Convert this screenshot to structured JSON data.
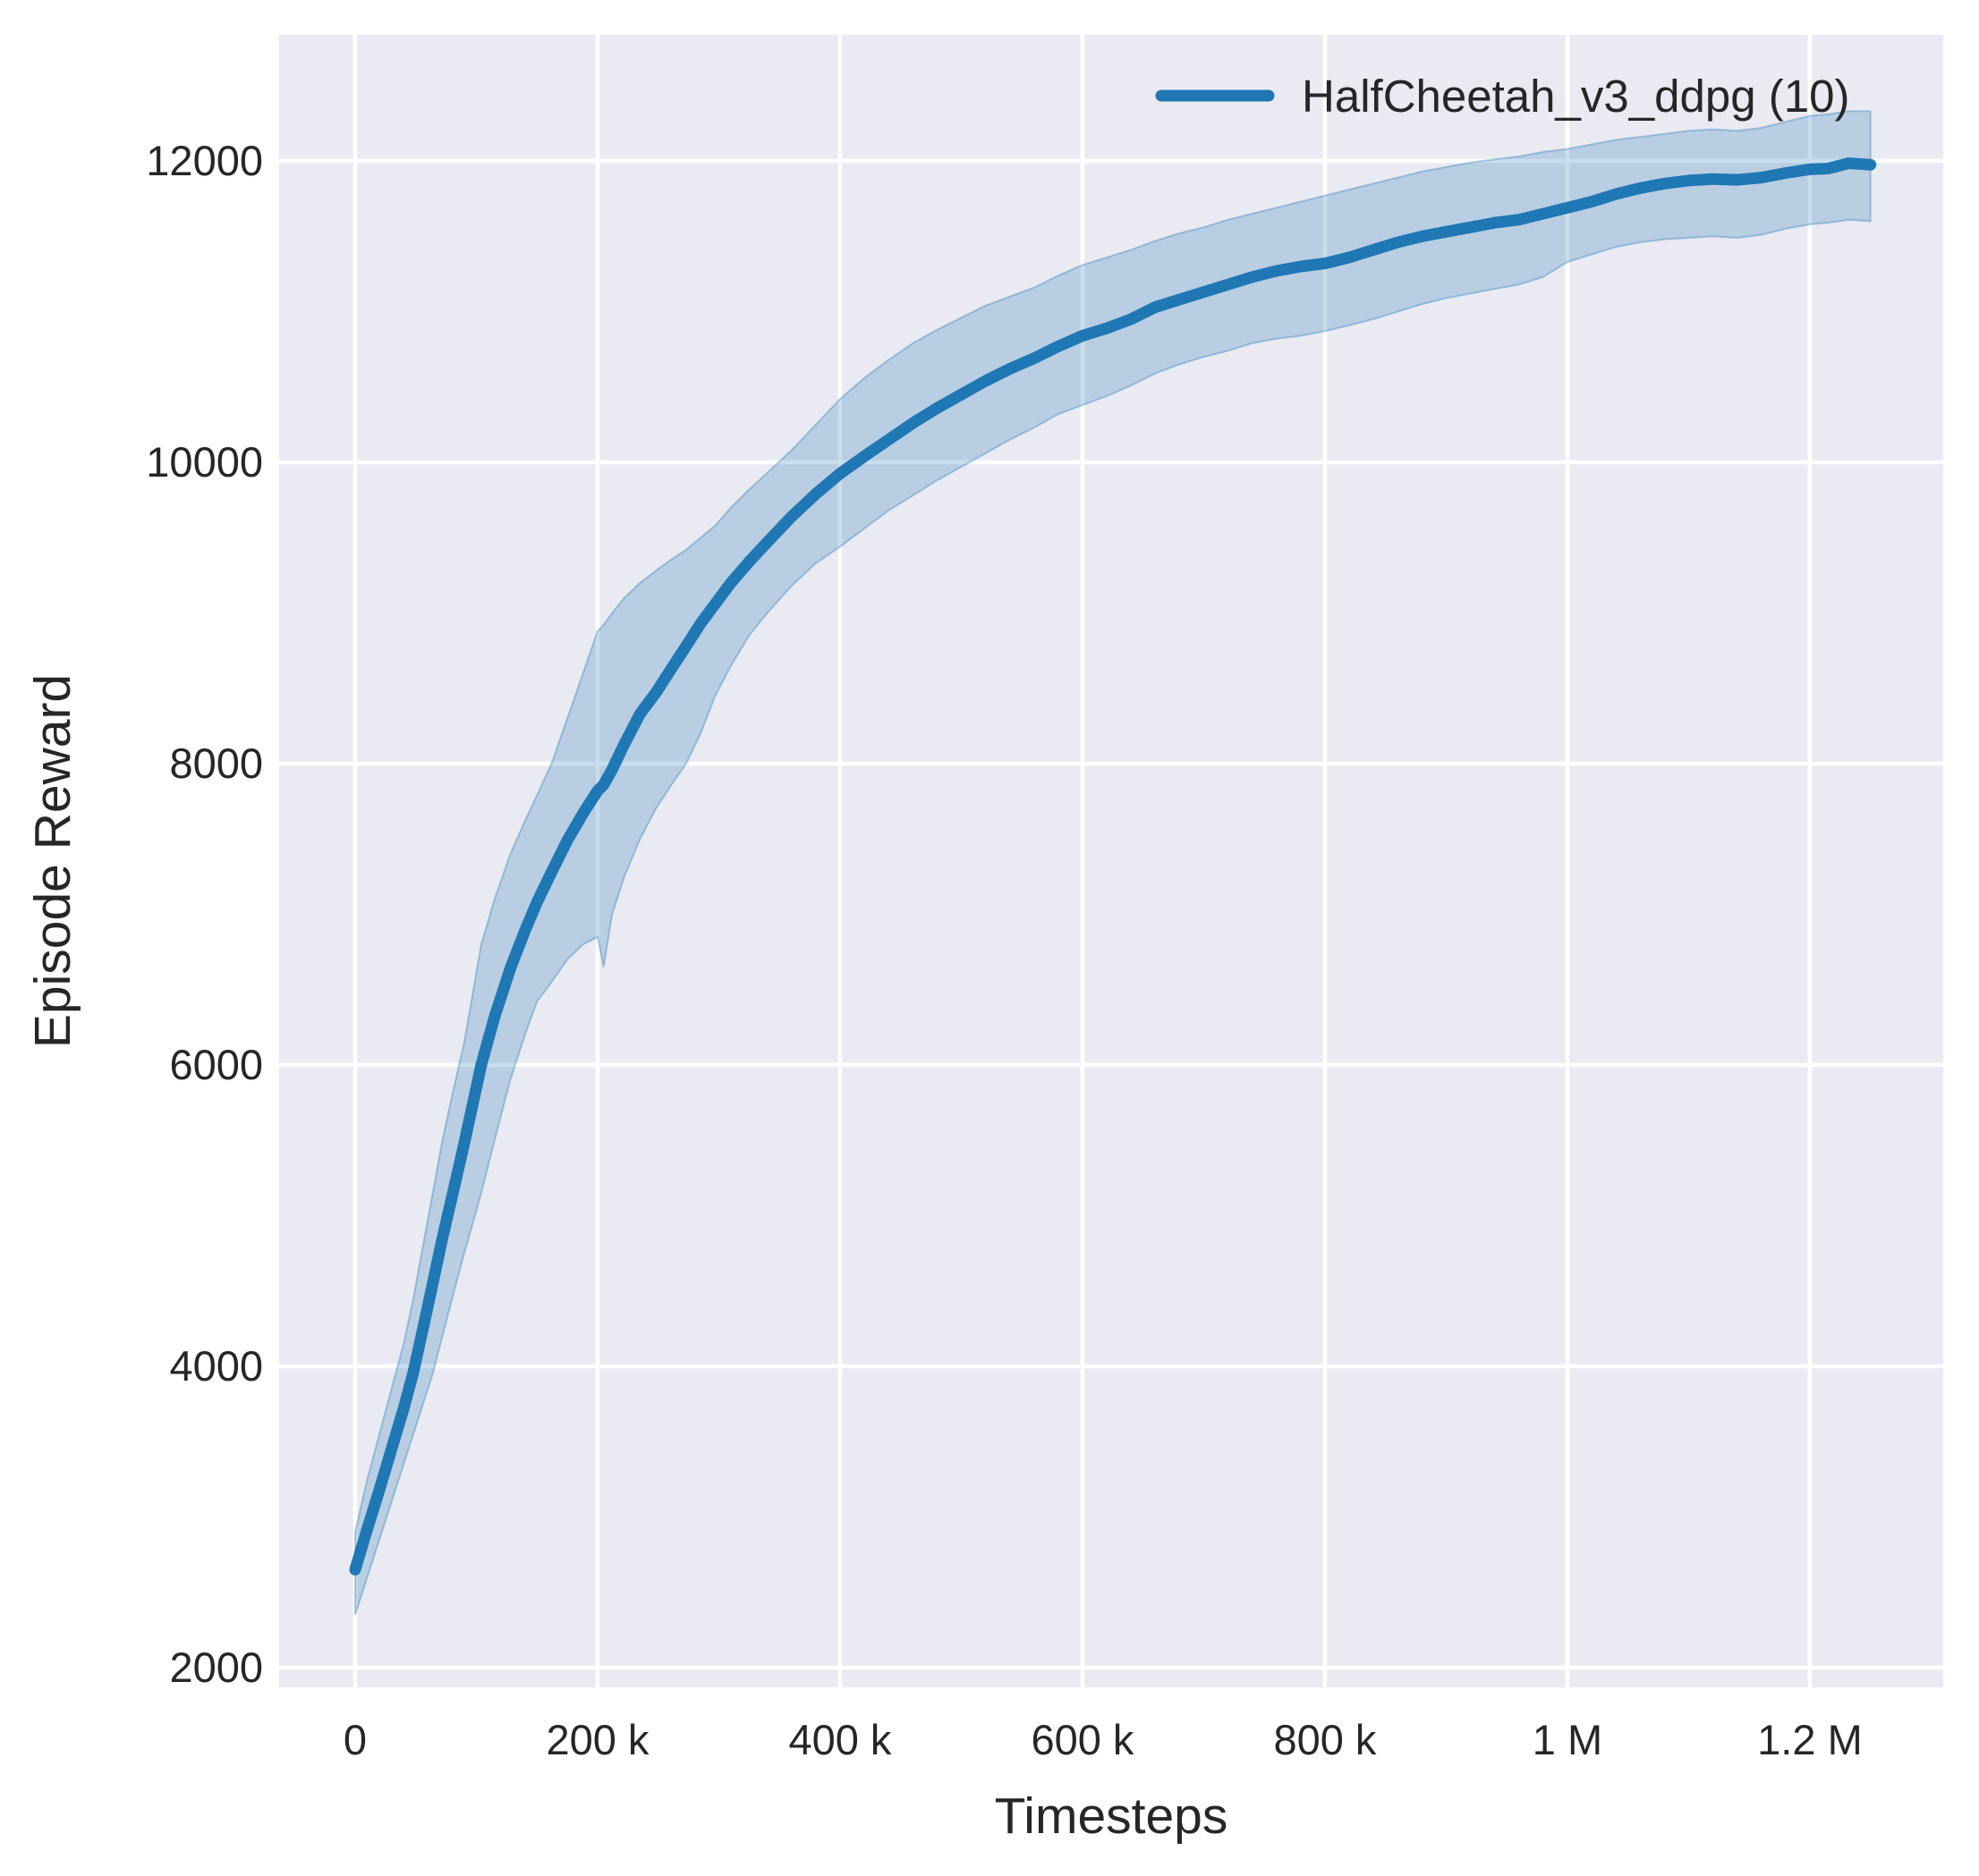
{
  "style": {
    "figure_background": "#ffffff",
    "plot_background": "#eaeaf2",
    "grid_color": "#ffffff",
    "text_color": "#262626",
    "line_color": "#1f77b4",
    "band_color": "rgba(31,119,180,0.24)",
    "band_edge_color": "rgba(31,119,180,0.35)"
  },
  "chart_data": {
    "type": "line",
    "title": "",
    "xlabel": "Timesteps",
    "ylabel": "Episode Reward",
    "grid": true,
    "legend_position": "upper right",
    "legend": [
      {
        "label": "HalfCheetah_v3_ddpg (10)",
        "color": "#1f77b4"
      }
    ],
    "xlim": [
      -62700,
      1310000
    ],
    "ylim": [
      1869,
      12837
    ],
    "x_ticks": [
      {
        "value": 0,
        "label": "0"
      },
      {
        "value": 200000,
        "label": "200 k"
      },
      {
        "value": 400000,
        "label": "400 k"
      },
      {
        "value": 600000,
        "label": "600 k"
      },
      {
        "value": 800000,
        "label": "800 k"
      },
      {
        "value": 1000000,
        "label": "1 M"
      },
      {
        "value": 1200000,
        "label": "1.2 M"
      }
    ],
    "y_ticks": [
      {
        "value": 2000,
        "label": "2000"
      },
      {
        "value": 4000,
        "label": "4000"
      },
      {
        "value": 6000,
        "label": "6000"
      },
      {
        "value": 8000,
        "label": "8000"
      },
      {
        "value": 10000,
        "label": "10000"
      },
      {
        "value": 12000,
        "label": "12000"
      }
    ],
    "series": [
      {
        "name": "HalfCheetah_v3_ddpg (10)",
        "color": "#1f77b4",
        "points_format": [
          "timesteps",
          "lower",
          "mean",
          "upper"
        ],
        "points": [
          [
            0,
            2350,
            2650,
            2900
          ],
          [
            10000,
            2600,
            2920,
            3250
          ],
          [
            20000,
            2850,
            3180,
            3550
          ],
          [
            30000,
            3100,
            3450,
            3850
          ],
          [
            40000,
            3350,
            3720,
            4150
          ],
          [
            48000,
            3550,
            3960,
            4450
          ],
          [
            56000,
            3750,
            4250,
            4800
          ],
          [
            64000,
            3950,
            4550,
            5150
          ],
          [
            72000,
            4200,
            4850,
            5500
          ],
          [
            80000,
            4450,
            5130,
            5800
          ],
          [
            90000,
            4750,
            5480,
            6150
          ],
          [
            104000,
            5150,
            6000,
            6800
          ],
          [
            115000,
            5500,
            6320,
            7100
          ],
          [
            128000,
            5900,
            6640,
            7400
          ],
          [
            140000,
            6200,
            6890,
            7620
          ],
          [
            150000,
            6420,
            7080,
            7790
          ],
          [
            162000,
            6550,
            7280,
            8000
          ],
          [
            175000,
            6700,
            7490,
            8300
          ],
          [
            188000,
            6800,
            7670,
            8600
          ],
          [
            200000,
            6850,
            7820,
            8880
          ],
          [
            205000,
            6650,
            7860,
            8920
          ],
          [
            212000,
            7000,
            7960,
            9000
          ],
          [
            222000,
            7250,
            8130,
            9100
          ],
          [
            235000,
            7500,
            8330,
            9200
          ],
          [
            248000,
            7700,
            8470,
            9280
          ],
          [
            260000,
            7850,
            8620,
            9350
          ],
          [
            273000,
            8000,
            8780,
            9420
          ],
          [
            285000,
            8200,
            8930,
            9500
          ],
          [
            297000,
            8450,
            9060,
            9580
          ],
          [
            310000,
            8650,
            9200,
            9700
          ],
          [
            325000,
            8850,
            9340,
            9820
          ],
          [
            340000,
            9000,
            9470,
            9930
          ],
          [
            360000,
            9180,
            9640,
            10080
          ],
          [
            380000,
            9330,
            9790,
            10250
          ],
          [
            400000,
            9440,
            9925,
            10420
          ],
          [
            420000,
            9560,
            10040,
            10560
          ],
          [
            440000,
            9680,
            10150,
            10680
          ],
          [
            460000,
            9780,
            10260,
            10790
          ],
          [
            480000,
            9880,
            10360,
            10880
          ],
          [
            500000,
            9970,
            10450,
            10960
          ],
          [
            520000,
            10060,
            10540,
            11040
          ],
          [
            540000,
            10150,
            10620,
            11100
          ],
          [
            560000,
            10230,
            10690,
            11160
          ],
          [
            580000,
            10320,
            10770,
            11240
          ],
          [
            600000,
            10380,
            10840,
            11310
          ],
          [
            620000,
            10440,
            10890,
            11360
          ],
          [
            640000,
            10510,
            10950,
            11410
          ],
          [
            660000,
            10590,
            11030,
            11470
          ],
          [
            680000,
            10650,
            11080,
            11520
          ],
          [
            700000,
            10700,
            11130,
            11560
          ],
          [
            720000,
            10740,
            11180,
            11610
          ],
          [
            740000,
            10790,
            11230,
            11650
          ],
          [
            760000,
            10820,
            11270,
            11690
          ],
          [
            780000,
            10840,
            11300,
            11730
          ],
          [
            800000,
            10870,
            11320,
            11770
          ],
          [
            820000,
            10910,
            11360,
            11810
          ],
          [
            840000,
            10950,
            11410,
            11850
          ],
          [
            860000,
            11000,
            11460,
            11890
          ],
          [
            880000,
            11050,
            11500,
            11930
          ],
          [
            900000,
            11090,
            11530,
            11960
          ],
          [
            920000,
            11120,
            11560,
            11990
          ],
          [
            940000,
            11150,
            11590,
            12010
          ],
          [
            960000,
            11180,
            11610,
            12030
          ],
          [
            980000,
            11230,
            11650,
            12060
          ],
          [
            1000000,
            11330,
            11690,
            12080
          ],
          [
            1020000,
            11380,
            11730,
            12110
          ],
          [
            1040000,
            11430,
            11780,
            12140
          ],
          [
            1060000,
            11460,
            11820,
            12160
          ],
          [
            1080000,
            11480,
            11850,
            12180
          ],
          [
            1100000,
            11490,
            11870,
            12200
          ],
          [
            1120000,
            11500,
            11880,
            12210
          ],
          [
            1140000,
            11490,
            11875,
            12200
          ],
          [
            1160000,
            11510,
            11890,
            12220
          ],
          [
            1180000,
            11550,
            11920,
            12260
          ],
          [
            1200000,
            11580,
            11945,
            12300
          ],
          [
            1215000,
            11590,
            11950,
            12310
          ],
          [
            1232000,
            11610,
            11985,
            12330
          ],
          [
            1250000,
            11600,
            11975,
            12330
          ]
        ]
      }
    ]
  }
}
